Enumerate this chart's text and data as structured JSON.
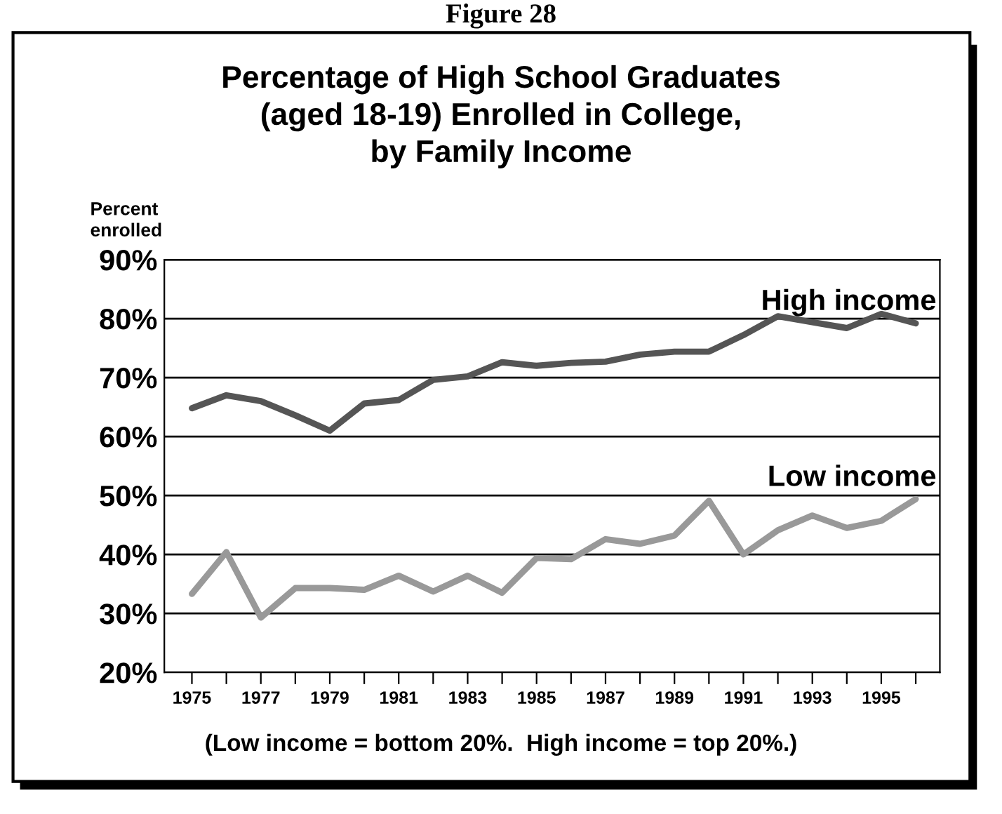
{
  "chart_data": {
    "type": "line",
    "title": "Percentage of High School Graduates\n(aged 18-19) Enrolled in College,\nby Family Income",
    "ylabel": "Percent\nenrolled",
    "categories": [
      "1975",
      null,
      "1977",
      null,
      "1979",
      null,
      "1981",
      null,
      "1983",
      null,
      "1985",
      null,
      "1987",
      null,
      "1989",
      null,
      "1991",
      null,
      "1993",
      null,
      "1995",
      null
    ],
    "series": [
      {
        "name": "High income",
        "color": "#555555",
        "values": [
          64.8,
          67.0,
          66.0,
          63.6,
          61.0,
          65.6,
          66.2,
          69.6,
          70.2,
          72.6,
          72.0,
          72.5,
          72.7,
          73.9,
          74.4,
          74.4,
          77.2,
          80.4,
          79.4,
          78.4,
          80.8,
          79.2
        ]
      },
      {
        "name": "Low income",
        "color": "#999999",
        "values": [
          33.3,
          40.4,
          29.3,
          34.3,
          34.3,
          34.0,
          36.4,
          33.7,
          36.4,
          33.5,
          39.4,
          39.2,
          42.6,
          41.8,
          43.2,
          49.1,
          40.0,
          44.1,
          46.6,
          44.5,
          45.7,
          49.4
        ]
      }
    ],
    "ylim": [
      20,
      90
    ],
    "yticks": [
      {
        "value": 20,
        "label": "20%"
      },
      {
        "value": 30,
        "label": "30%"
      },
      {
        "value": 40,
        "label": "40%"
      },
      {
        "value": 50,
        "label": "50%"
      },
      {
        "value": 60,
        "label": "60%"
      },
      {
        "value": 70,
        "label": "70%"
      },
      {
        "value": 80,
        "label": "80%"
      },
      {
        "value": 90,
        "label": "90%"
      }
    ],
    "grid": "y",
    "legend": false,
    "marker": "none",
    "line_style": "solid",
    "annotations": [
      "Figure 28",
      "(Low income = bottom 20%.  High income = top 20%.)"
    ]
  }
}
